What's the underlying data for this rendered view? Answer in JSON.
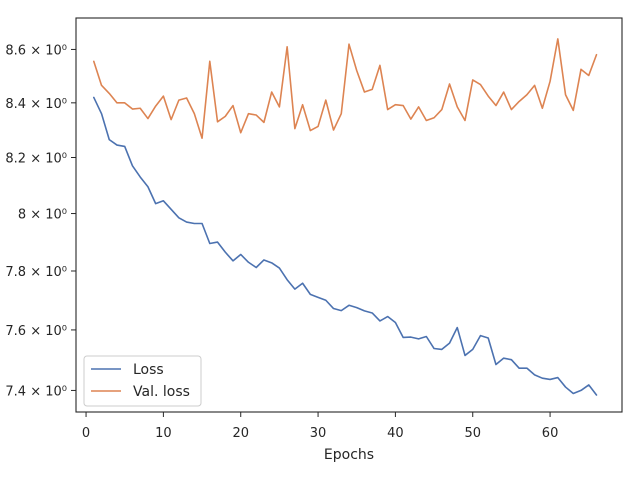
{
  "chart_data": {
    "type": "line",
    "title": "",
    "xlabel": "Epochs",
    "ylabel": "",
    "yscale": "log",
    "xlim": [
      -1.3,
      69.3
    ],
    "ylim": [
      7.33,
      8.72
    ],
    "xticks": [
      0,
      10,
      20,
      30,
      40,
      50,
      60
    ],
    "xtick_labels": [
      "0",
      "10",
      "20",
      "30",
      "40",
      "50",
      "60"
    ],
    "yticks": [
      7.4,
      7.6,
      7.8,
      8.0,
      8.2,
      8.4,
      8.6
    ],
    "ytick_labels": [
      "7.4 × 10⁰",
      "7.6 × 10⁰",
      "7.8 × 10⁰",
      "8 × 10⁰",
      "8.2 × 10⁰",
      "8.4 × 10⁰",
      "8.6 × 10⁰"
    ],
    "grid": false,
    "legend_position": "lower-left",
    "x": [
      1,
      2,
      3,
      4,
      5,
      6,
      7,
      8,
      9,
      10,
      11,
      12,
      13,
      14,
      15,
      16,
      17,
      18,
      19,
      20,
      21,
      22,
      23,
      24,
      25,
      26,
      27,
      28,
      29,
      30,
      31,
      32,
      33,
      34,
      35,
      36,
      37,
      38,
      39,
      40,
      41,
      42,
      43,
      44,
      45,
      46,
      47,
      48,
      49,
      50,
      51,
      52,
      53,
      54,
      55,
      56,
      57,
      58,
      59,
      60,
      61,
      62,
      63,
      64,
      65,
      66
    ],
    "series": [
      {
        "name": "Loss",
        "color": "#4c72b0",
        "values": [
          8.42,
          8.36,
          8.265,
          8.245,
          8.24,
          8.17,
          8.13,
          8.095,
          8.035,
          8.045,
          8.015,
          7.985,
          7.97,
          7.965,
          7.965,
          7.895,
          7.9,
          7.865,
          7.835,
          7.857,
          7.83,
          7.812,
          7.838,
          7.828,
          7.81,
          7.77,
          7.738,
          7.758,
          7.72,
          7.71,
          7.7,
          7.672,
          7.665,
          7.683,
          7.675,
          7.664,
          7.657,
          7.63,
          7.645,
          7.625,
          7.575,
          7.576,
          7.57,
          7.578,
          7.538,
          7.535,
          7.556,
          7.608,
          7.515,
          7.535,
          7.581,
          7.573,
          7.485,
          7.506,
          7.501,
          7.473,
          7.473,
          7.451,
          7.44,
          7.436,
          7.442,
          7.411,
          7.39,
          7.4,
          7.418,
          7.385
        ]
      },
      {
        "name": "Val. loss",
        "color": "#dd8452",
        "values": [
          8.555,
          8.465,
          8.435,
          8.4,
          8.4,
          8.377,
          8.38,
          8.342,
          8.388,
          8.425,
          8.338,
          8.41,
          8.418,
          8.36,
          8.27,
          8.555,
          8.33,
          8.35,
          8.39,
          8.29,
          8.36,
          8.355,
          8.328,
          8.44,
          8.385,
          8.61,
          8.305,
          8.393,
          8.298,
          8.313,
          8.41,
          8.3,
          8.36,
          8.62,
          8.52,
          8.44,
          8.45,
          8.54,
          8.375,
          8.393,
          8.39,
          8.34,
          8.385,
          8.335,
          8.345,
          8.375,
          8.47,
          8.385,
          8.335,
          8.485,
          8.468,
          8.425,
          8.39,
          8.44,
          8.375,
          8.405,
          8.43,
          8.465,
          8.38,
          8.48,
          8.64,
          8.43,
          8.372,
          8.525,
          8.502,
          8.58
        ]
      }
    ]
  },
  "colors": {
    "axes": "#262626",
    "background": "#ffffff",
    "legend_border": "#cccccc"
  }
}
